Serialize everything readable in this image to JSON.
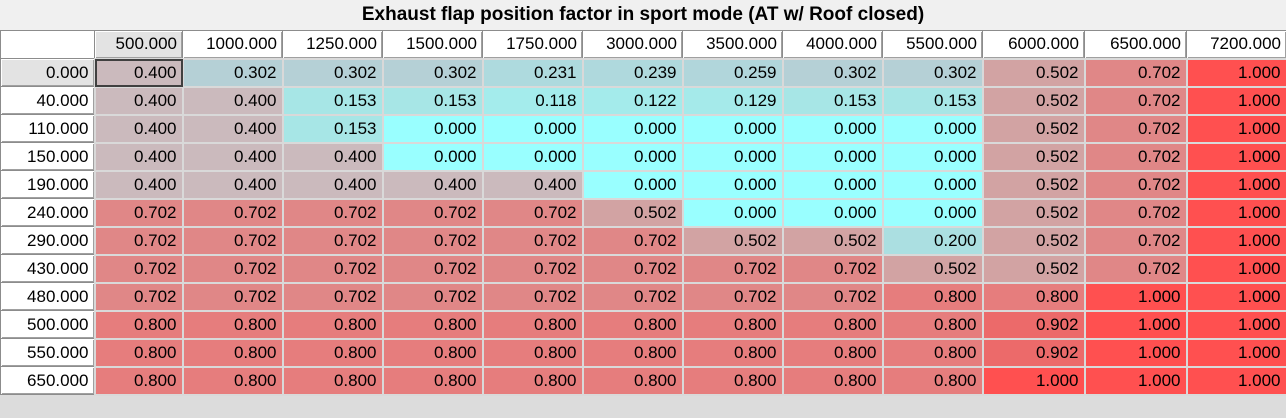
{
  "title": "Exhaust flap position factor in sport mode (AT w/ Roof closed)",
  "table": {
    "col_headers": [
      "500.000",
      "1000.000",
      "1250.000",
      "1500.000",
      "1750.000",
      "3000.000",
      "3500.000",
      "4000.000",
      "5500.000",
      "6000.000",
      "6500.000",
      "7200.000"
    ],
    "row_headers": [
      "0.000",
      "40.000",
      "110.000",
      "150.000",
      "190.000",
      "240.000",
      "290.000",
      "430.000",
      "480.000",
      "500.000",
      "550.000",
      "650.000"
    ],
    "cells": [
      [
        "0.400",
        "0.302",
        "0.302",
        "0.302",
        "0.231",
        "0.239",
        "0.259",
        "0.302",
        "0.302",
        "0.502",
        "0.702",
        "1.000"
      ],
      [
        "0.400",
        "0.400",
        "0.153",
        "0.153",
        "0.118",
        "0.122",
        "0.129",
        "0.153",
        "0.153",
        "0.502",
        "0.702",
        "1.000"
      ],
      [
        "0.400",
        "0.400",
        "0.153",
        "0.000",
        "0.000",
        "0.000",
        "0.000",
        "0.000",
        "0.000",
        "0.502",
        "0.702",
        "1.000"
      ],
      [
        "0.400",
        "0.400",
        "0.400",
        "0.000",
        "0.000",
        "0.000",
        "0.000",
        "0.000",
        "0.000",
        "0.502",
        "0.702",
        "1.000"
      ],
      [
        "0.400",
        "0.400",
        "0.400",
        "0.400",
        "0.400",
        "0.000",
        "0.000",
        "0.000",
        "0.000",
        "0.502",
        "0.702",
        "1.000"
      ],
      [
        "0.702",
        "0.702",
        "0.702",
        "0.702",
        "0.702",
        "0.502",
        "0.000",
        "0.000",
        "0.000",
        "0.502",
        "0.702",
        "1.000"
      ],
      [
        "0.702",
        "0.702",
        "0.702",
        "0.702",
        "0.702",
        "0.702",
        "0.502",
        "0.502",
        "0.200",
        "0.502",
        "0.702",
        "1.000"
      ],
      [
        "0.702",
        "0.702",
        "0.702",
        "0.702",
        "0.702",
        "0.702",
        "0.702",
        "0.702",
        "0.502",
        "0.502",
        "0.702",
        "1.000"
      ],
      [
        "0.702",
        "0.702",
        "0.702",
        "0.702",
        "0.702",
        "0.702",
        "0.702",
        "0.702",
        "0.800",
        "0.800",
        "1.000",
        "1.000"
      ],
      [
        "0.800",
        "0.800",
        "0.800",
        "0.800",
        "0.800",
        "0.800",
        "0.800",
        "0.800",
        "0.800",
        "0.902",
        "1.000",
        "1.000"
      ],
      [
        "0.800",
        "0.800",
        "0.800",
        "0.800",
        "0.800",
        "0.800",
        "0.800",
        "0.800",
        "0.800",
        "0.902",
        "1.000",
        "1.000"
      ],
      [
        "0.800",
        "0.800",
        "0.800",
        "0.800",
        "0.800",
        "0.800",
        "0.800",
        "0.800",
        "0.800",
        "1.000",
        "1.000",
        "1.000"
      ]
    ],
    "selected_cell": [
      0,
      0
    ]
  },
  "colors": {
    "scale": [
      {
        "value": 0.0,
        "color": "#99ffff"
      },
      {
        "value": 0.153,
        "color": "#a7e6e6"
      },
      {
        "value": 0.302,
        "color": "#b5d0d6"
      },
      {
        "value": 0.4,
        "color": "#cbbabd"
      },
      {
        "value": 0.502,
        "color": "#d2a3a3"
      },
      {
        "value": 0.702,
        "color": "#e08787"
      },
      {
        "value": 0.8,
        "color": "#e67d7d"
      },
      {
        "value": 0.902,
        "color": "#ec6a6a"
      },
      {
        "value": 1.0,
        "color": "#ff5050"
      }
    ],
    "header_bg": "#ffffff",
    "header_active_bg": "#e3e3e3",
    "background": "#f0f0f0"
  }
}
